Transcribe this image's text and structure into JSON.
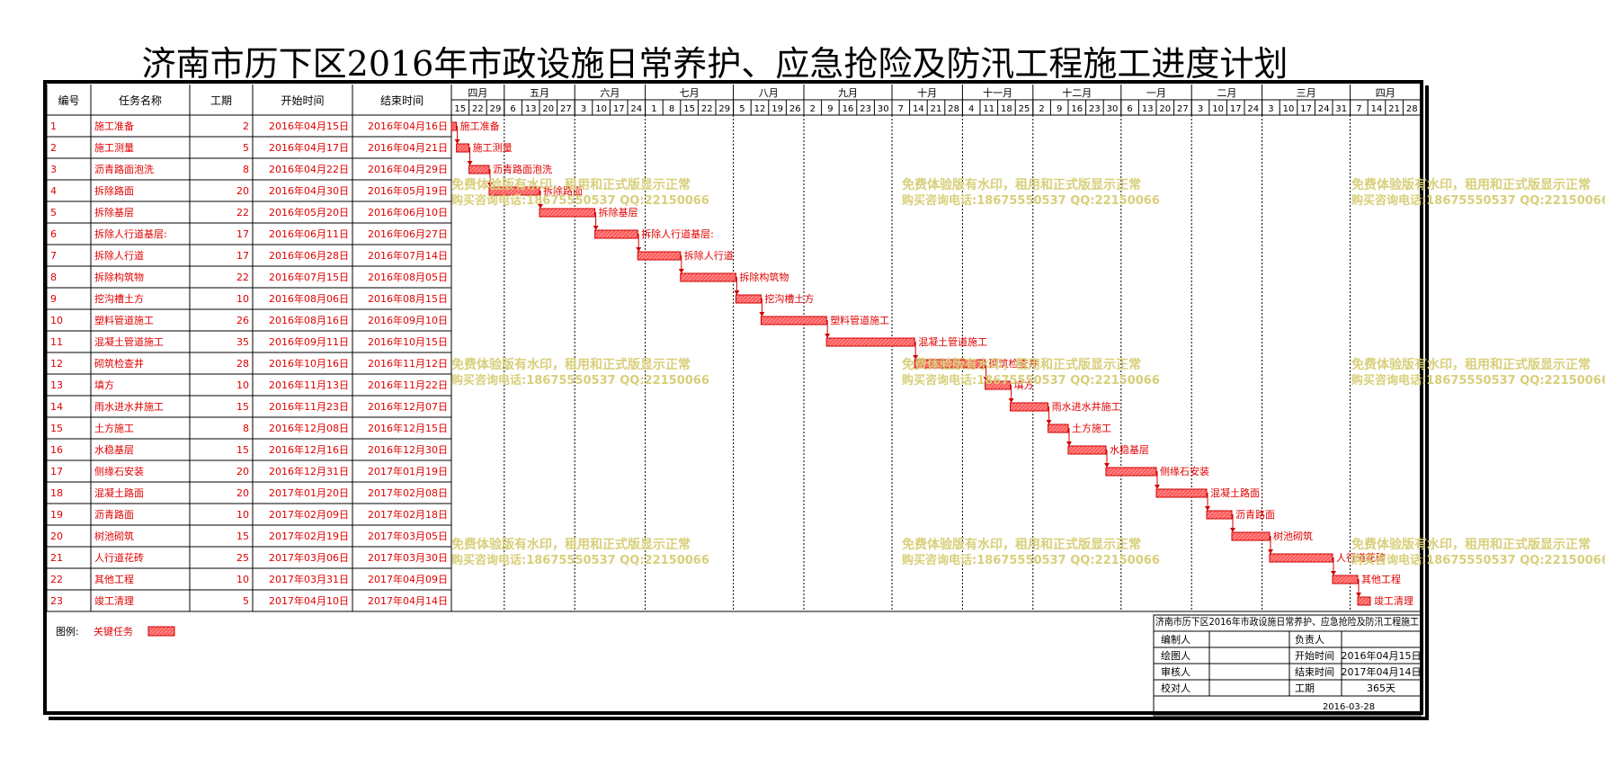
{
  "title": "济南市历下区2016年市政设施日常养护、应急抢险及防汛工程施工进度计划",
  "headers": {
    "id": "编号",
    "name": "任务名称",
    "duration": "工期",
    "start": "开始时间",
    "end": "结束时间"
  },
  "months": [
    "四月",
    "五月",
    "六月",
    "七月",
    "八月",
    "九月",
    "十月",
    "十一月",
    "十二月",
    "一月",
    "二月",
    "三月",
    "四月"
  ],
  "week_days": [
    "15",
    "22",
    "29",
    "6",
    "13",
    "20",
    "27",
    "3",
    "10",
    "17",
    "24",
    "1",
    "8",
    "15",
    "22",
    "29",
    "5",
    "12",
    "19",
    "26",
    "2",
    "9",
    "16",
    "23",
    "30",
    "7",
    "14",
    "21",
    "28",
    "4",
    "11",
    "18",
    "25",
    "2",
    "9",
    "16",
    "23",
    "30",
    "6",
    "13",
    "20",
    "27",
    "3",
    "10",
    "17",
    "24",
    "3",
    "10",
    "17",
    "24",
    "31",
    "7",
    "14",
    "21",
    "28"
  ],
  "tasks": [
    {
      "id": "1",
      "name": "施工准备",
      "duration": "2",
      "start": "2016年04月15日",
      "end": "2016年04月16日"
    },
    {
      "id": "2",
      "name": "施工测量",
      "duration": "5",
      "start": "2016年04月17日",
      "end": "2016年04月21日"
    },
    {
      "id": "3",
      "name": "沥青路面泡洗",
      "duration": "8",
      "start": "2016年04月22日",
      "end": "2016年04月29日"
    },
    {
      "id": "4",
      "name": "拆除路面",
      "duration": "20",
      "start": "2016年04月30日",
      "end": "2016年05月19日"
    },
    {
      "id": "5",
      "name": "拆除基层",
      "duration": "22",
      "start": "2016年05月20日",
      "end": "2016年06月10日"
    },
    {
      "id": "6",
      "name": "拆除人行道基层:",
      "duration": "17",
      "start": "2016年06月11日",
      "end": "2016年06月27日"
    },
    {
      "id": "7",
      "name": "拆除人行道",
      "duration": "17",
      "start": "2016年06月28日",
      "end": "2016年07月14日"
    },
    {
      "id": "8",
      "name": "拆除构筑物",
      "duration": "22",
      "start": "2016年07月15日",
      "end": "2016年08月05日"
    },
    {
      "id": "9",
      "name": "挖沟槽土方",
      "duration": "10",
      "start": "2016年08月06日",
      "end": "2016年08月15日"
    },
    {
      "id": "10",
      "name": "塑料管道施工",
      "duration": "26",
      "start": "2016年08月16日",
      "end": "2016年09月10日"
    },
    {
      "id": "11",
      "name": "混凝土管道施工",
      "duration": "35",
      "start": "2016年09月11日",
      "end": "2016年10月15日"
    },
    {
      "id": "12",
      "name": "砌筑检查井",
      "duration": "28",
      "start": "2016年10月16日",
      "end": "2016年11月12日"
    },
    {
      "id": "13",
      "name": "填方",
      "duration": "10",
      "start": "2016年11月13日",
      "end": "2016年11月22日"
    },
    {
      "id": "14",
      "name": "雨水进水井施工",
      "duration": "15",
      "start": "2016年11月23日",
      "end": "2016年12月07日"
    },
    {
      "id": "15",
      "name": "土方施工",
      "duration": "8",
      "start": "2016年12月08日",
      "end": "2016年12月15日"
    },
    {
      "id": "16",
      "name": "水稳基层",
      "duration": "15",
      "start": "2016年12月16日",
      "end": "2016年12月30日"
    },
    {
      "id": "17",
      "name": "侧缘石安装",
      "duration": "20",
      "start": "2016年12月31日",
      "end": "2017年01月19日"
    },
    {
      "id": "18",
      "name": "混凝土路面",
      "duration": "20",
      "start": "2017年01月20日",
      "end": "2017年02月08日"
    },
    {
      "id": "19",
      "name": "沥青路面",
      "duration": "10",
      "start": "2017年02月09日",
      "end": "2017年02月18日"
    },
    {
      "id": "20",
      "name": "树池砌筑",
      "duration": "15",
      "start": "2017年02月19日",
      "end": "2017年03月05日"
    },
    {
      "id": "21",
      "name": "人行道花砖",
      "duration": "25",
      "start": "2017年03月06日",
      "end": "2017年03月30日"
    },
    {
      "id": "22",
      "name": "其他工程",
      "duration": "10",
      "start": "2017年03月31日",
      "end": "2017年04月09日"
    },
    {
      "id": "23",
      "name": "竣工清理",
      "duration": "5",
      "start": "2017年04月10日",
      "end": "2017年04月14日"
    }
  ],
  "bars": [
    {
      "start_day": 0,
      "days": 2
    },
    {
      "start_day": 2,
      "days": 5
    },
    {
      "start_day": 7,
      "days": 8
    },
    {
      "start_day": 15,
      "days": 20
    },
    {
      "start_day": 35,
      "days": 22
    },
    {
      "start_day": 57,
      "days": 17
    },
    {
      "start_day": 74,
      "days": 17
    },
    {
      "start_day": 91,
      "days": 22
    },
    {
      "start_day": 113,
      "days": 10
    },
    {
      "start_day": 123,
      "days": 26
    },
    {
      "start_day": 149,
      "days": 35
    },
    {
      "start_day": 184,
      "days": 28
    },
    {
      "start_day": 212,
      "days": 10
    },
    {
      "start_day": 222,
      "days": 15
    },
    {
      "start_day": 237,
      "days": 8
    },
    {
      "start_day": 245,
      "days": 15
    },
    {
      "start_day": 260,
      "days": 20
    },
    {
      "start_day": 280,
      "days": 20
    },
    {
      "start_day": 300,
      "days": 10
    },
    {
      "start_day": 310,
      "days": 15
    },
    {
      "start_day": 325,
      "days": 25
    },
    {
      "start_day": 350,
      "days": 10
    },
    {
      "start_day": 360,
      "days": 5
    }
  ],
  "legend": {
    "label": "图例:",
    "item": "关键任务"
  },
  "info_block": {
    "title": "济南市历下区2016年市政设施日常养护、应急抢险及防汛工程施工",
    "compiler_label": "编制人",
    "responsible_label": "负责人",
    "drafter_label": "绘图人",
    "start_label": "开始时间",
    "start_value": "2016年04月15日",
    "reviewer_label": "审核人",
    "end_label": "结束时间",
    "end_value": "2017年04月14日",
    "checker_label": "校对人",
    "duration_label": "工期",
    "duration_value": "365天",
    "date": "2016-03-28"
  },
  "watermark": {
    "line1": "免费体验版有水印，租用和正式版显示正常",
    "line2": "购买咨询电话:18675550537 QQ:22150066"
  },
  "colors": {
    "bar_fill": "#ff5a5a",
    "bar_stroke": "#cc0000",
    "task_text": "#e00000",
    "grid": "#000000",
    "watermark": "#d8cf7a"
  }
}
